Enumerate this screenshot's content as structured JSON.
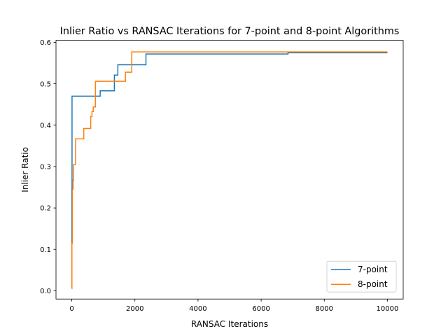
{
  "chart_data": {
    "type": "line",
    "title": "Inlier Ratio vs RANSAC Iterations for 7-point and 8-point Algorithms",
    "xlabel": "RANSAC Iterations",
    "ylabel": "Inlier Ratio",
    "xlim": [
      -500,
      10500
    ],
    "ylim": [
      -0.02,
      0.605
    ],
    "xticks": [
      0,
      2000,
      4000,
      6000,
      8000,
      10000
    ],
    "xtick_labels": [
      "0",
      "2000",
      "4000",
      "6000",
      "8000",
      "10000"
    ],
    "yticks": [
      0.0,
      0.1,
      0.2,
      0.3,
      0.4,
      0.5,
      0.6
    ],
    "ytick_labels": [
      "0.0",
      "0.1",
      "0.2",
      "0.3",
      "0.4",
      "0.5",
      "0.6"
    ],
    "grid": false,
    "legend_position": "bottom-right",
    "step": "post",
    "series": [
      {
        "name": "7-point",
        "color": "#1f77b4",
        "x": [
          0,
          3,
          8,
          900,
          1350,
          1390,
          1460,
          2350,
          6850,
          6850,
          10000
        ],
        "y": [
          0.007,
          0.245,
          0.47,
          0.483,
          0.521,
          0.521,
          0.546,
          0.572,
          0.574,
          0.575,
          0.575
        ]
      },
      {
        "name": "8-point",
        "color": "#ff7f0e",
        "x": [
          0,
          5,
          20,
          40,
          60,
          80,
          120,
          380,
          600,
          640,
          680,
          750,
          1700,
          1900,
          10000
        ],
        "y": [
          0.005,
          0.115,
          0.245,
          0.267,
          0.305,
          0.305,
          0.367,
          0.392,
          0.421,
          0.433,
          0.444,
          0.506,
          0.528,
          0.577,
          0.577
        ]
      }
    ]
  }
}
